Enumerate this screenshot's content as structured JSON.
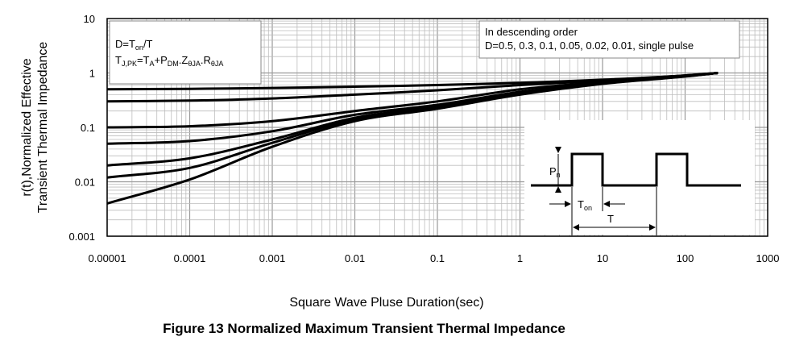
{
  "chart_data": {
    "type": "line",
    "xscale": "log",
    "yscale": "log",
    "xlim": [
      1e-05,
      1000
    ],
    "ylim": [
      0.001,
      10
    ],
    "xticks": [
      "0.00001",
      "0.0001",
      "0.001",
      "0.01",
      "0.1",
      "1",
      "10",
      "100",
      "1000"
    ],
    "yticks": [
      "10",
      "1",
      "0.1",
      "0.01",
      "0.001"
    ],
    "xlabel": "Square Wave Pluse Duration(sec)",
    "ylabel_line1": "r(t),Normalized Effective",
    "ylabel_line2": "Transient Thermal Impedance",
    "grid": true,
    "series": [
      {
        "x": [
          1e-05,
          0.0001,
          0.001,
          0.01,
          0.1,
          1,
          10,
          100,
          250
        ],
        "y": [
          0.5,
          0.51,
          0.53,
          0.56,
          0.6,
          0.66,
          0.75,
          0.9,
          1.0
        ]
      },
      {
        "x": [
          1e-05,
          0.0001,
          0.001,
          0.01,
          0.1,
          1,
          10,
          100,
          250
        ],
        "y": [
          0.3,
          0.31,
          0.34,
          0.4,
          0.48,
          0.6,
          0.72,
          0.9,
          1.0
        ]
      },
      {
        "x": [
          1e-05,
          0.0001,
          0.001,
          0.01,
          0.1,
          1,
          10,
          100,
          250
        ],
        "y": [
          0.1,
          0.105,
          0.13,
          0.2,
          0.3,
          0.5,
          0.68,
          0.88,
          1.0
        ]
      },
      {
        "x": [
          1e-05,
          0.0001,
          0.001,
          0.01,
          0.1,
          1,
          10,
          100,
          250
        ],
        "y": [
          0.05,
          0.056,
          0.085,
          0.17,
          0.26,
          0.45,
          0.66,
          0.88,
          1.0
        ]
      },
      {
        "x": [
          1e-05,
          0.0001,
          0.001,
          0.01,
          0.1,
          1,
          10,
          100,
          250
        ],
        "y": [
          0.02,
          0.027,
          0.06,
          0.15,
          0.24,
          0.42,
          0.65,
          0.87,
          1.0
        ]
      },
      {
        "x": [
          1e-05,
          0.0001,
          0.001,
          0.01,
          0.1,
          1,
          10,
          100,
          250
        ],
        "y": [
          0.012,
          0.018,
          0.052,
          0.14,
          0.23,
          0.41,
          0.64,
          0.87,
          1.0
        ]
      },
      {
        "x": [
          1e-05,
          0.0001,
          0.001,
          0.01,
          0.1,
          1,
          10,
          100,
          250
        ],
        "y": [
          0.004,
          0.011,
          0.044,
          0.13,
          0.22,
          0.4,
          0.63,
          0.86,
          1.0
        ]
      }
    ]
  },
  "legend_box": {
    "line1": "In descending order",
    "line2": "D=0.5, 0.3, 0.1, 0.05, 0.02, 0.01, single pulse"
  },
  "formula_box": {
    "d_prefix": "D=T",
    "d_sub": "on",
    "d_suffix": "/T",
    "t_main": "T",
    "t_sub1": "J,PK",
    "t_eq": "=T",
    "t_sub2": "A",
    "t_plus": "+P",
    "t_sub3": "DM",
    "t_z": ".Z",
    "t_sub4": "θJA",
    "t_r": ".R",
    "t_sub5": "θJA"
  },
  "pulse_inset": {
    "pn_main": "P",
    "pn_sub": "n",
    "ton_main": "T",
    "ton_sub": "on",
    "t_label": "T"
  },
  "caption": "Figure 13 Normalized Maximum Transient Thermal Impedance"
}
